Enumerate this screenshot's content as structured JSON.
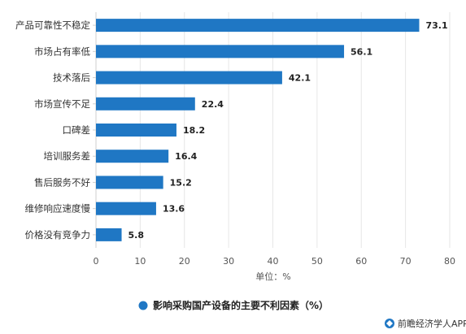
{
  "chart_data": {
    "type": "bar",
    "orientation": "horizontal",
    "categories": [
      "产品可靠性不稳定",
      "市场占有率低",
      "技术落后",
      "市场宣传不足",
      "口碑差",
      "培训服务差",
      "售后服务不好",
      "维修响应速度慢",
      "价格没有竞争力"
    ],
    "values": [
      73.1,
      56.1,
      42.1,
      22.4,
      18.2,
      16.4,
      15.2,
      13.6,
      5.8
    ],
    "value_labels": [
      "73.1",
      "56.1",
      "42.1",
      "22.4",
      "18.2",
      "16.4",
      "15.2",
      "13.6",
      "5.8"
    ],
    "xlim": [
      0,
      80
    ],
    "x_ticks": [
      0,
      10,
      20,
      30,
      40,
      50,
      60,
      70,
      80
    ],
    "x_tick_labels": [
      "0",
      "10",
      "20",
      "30",
      "40",
      "50",
      "60",
      "70",
      "80"
    ],
    "xlabel": "单位：%",
    "ylabel": "",
    "grid": "vertical",
    "legend": {
      "position": "bottom",
      "entries": [
        {
          "name": "影响采购国产设备的主要不利因素（%）",
          "color": "#1f77c4"
        }
      ]
    },
    "bar_color": "#1f77c4"
  },
  "source": {
    "icon": "qianzhan-logo-icon",
    "text": "前瞻经济学人APP"
  },
  "colors": {
    "bar": "#1f77c4",
    "grid": "#e6e6e6",
    "axis": "#cfcfcf"
  }
}
